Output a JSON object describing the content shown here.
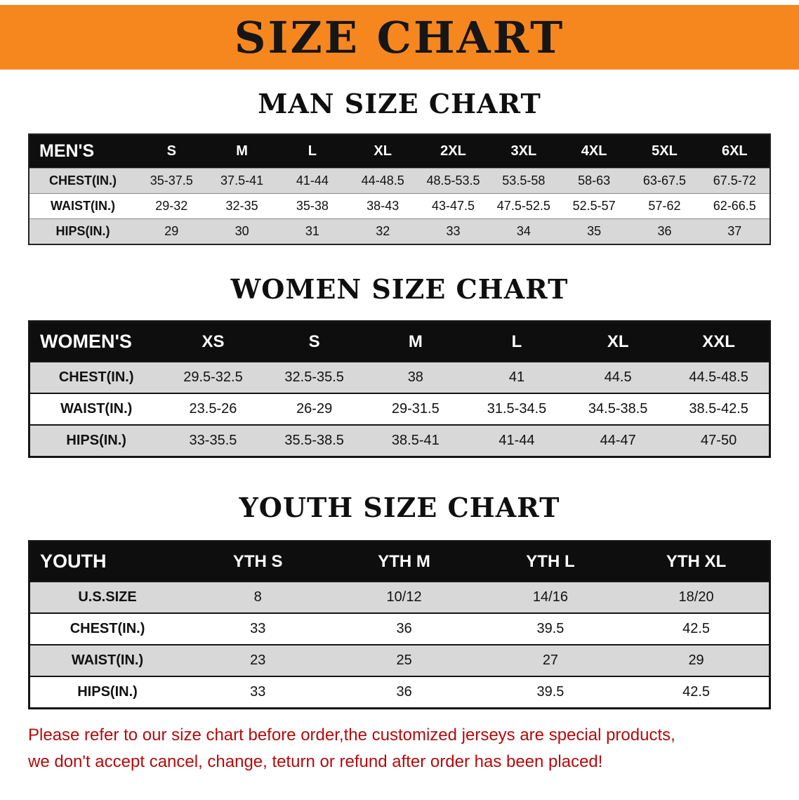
{
  "banner": {
    "title": "SIZE CHART"
  },
  "colors": {
    "banner_bg": "#F6871F",
    "header_bg": "#0E0E0E",
    "row_alt": "#D8D8D8",
    "footer_text": "#B40B0B"
  },
  "sections": [
    {
      "title": "MAN SIZE CHART",
      "corner": "MEN'S",
      "columns": [
        "S",
        "M",
        "L",
        "XL",
        "2XL",
        "3XL",
        "4XL",
        "5XL",
        "6XL"
      ],
      "rows": [
        {
          "label": "CHEST(IN.)",
          "values": [
            "35-37.5",
            "37.5-41",
            "41-44",
            "44-48.5",
            "48.5-53.5",
            "53.5-58",
            "58-63",
            "63-67.5",
            "67.5-72"
          ]
        },
        {
          "label": "WAIST(IN.)",
          "values": [
            "29-32",
            "32-35",
            "35-38",
            "38-43",
            "43-47.5",
            "47.5-52.5",
            "52.5-57",
            "57-62",
            "62-66.5"
          ]
        },
        {
          "label": "HIPS(IN.)",
          "values": [
            "29",
            "30",
            "31",
            "32",
            "33",
            "34",
            "35",
            "36",
            "37"
          ]
        }
      ]
    },
    {
      "title": "WOMEN SIZE CHART",
      "corner": "WOMEN'S",
      "columns": [
        "XS",
        "S",
        "M",
        "L",
        "XL",
        "XXL"
      ],
      "rows": [
        {
          "label": "CHEST(IN.)",
          "values": [
            "29.5-32.5",
            "32.5-35.5",
            "38",
            "41",
            "44.5",
            "44.5-48.5"
          ]
        },
        {
          "label": "WAIST(IN.)",
          "values": [
            "23.5-26",
            "26-29",
            "29-31.5",
            "31.5-34.5",
            "34.5-38.5",
            "38.5-42.5"
          ]
        },
        {
          "label": "HIPS(IN.)",
          "values": [
            "33-35.5",
            "35.5-38.5",
            "38.5-41",
            "41-44",
            "44-47",
            "47-50"
          ]
        }
      ]
    },
    {
      "title": "YOUTH SIZE CHART",
      "corner": "YOUTH",
      "columns": [
        "YTH S",
        "YTH M",
        "YTH L",
        "YTH XL"
      ],
      "rows": [
        {
          "label": "U.S.SIZE",
          "values": [
            "8",
            "10/12",
            "14/16",
            "18/20"
          ]
        },
        {
          "label": "CHEST(IN.)",
          "values": [
            "33",
            "36",
            "39.5",
            "42.5"
          ]
        },
        {
          "label": "WAIST(IN.)",
          "values": [
            "23",
            "25",
            "27",
            "29"
          ]
        },
        {
          "label": "HIPS(IN.)",
          "values": [
            "33",
            "36",
            "39.5",
            "42.5"
          ]
        }
      ]
    }
  ],
  "footer": {
    "line1": "Please refer to our size chart before order,the customized jerseys are special products,",
    "line2": "we don't accept cancel, change, teturn or refund after order has been placed!"
  }
}
